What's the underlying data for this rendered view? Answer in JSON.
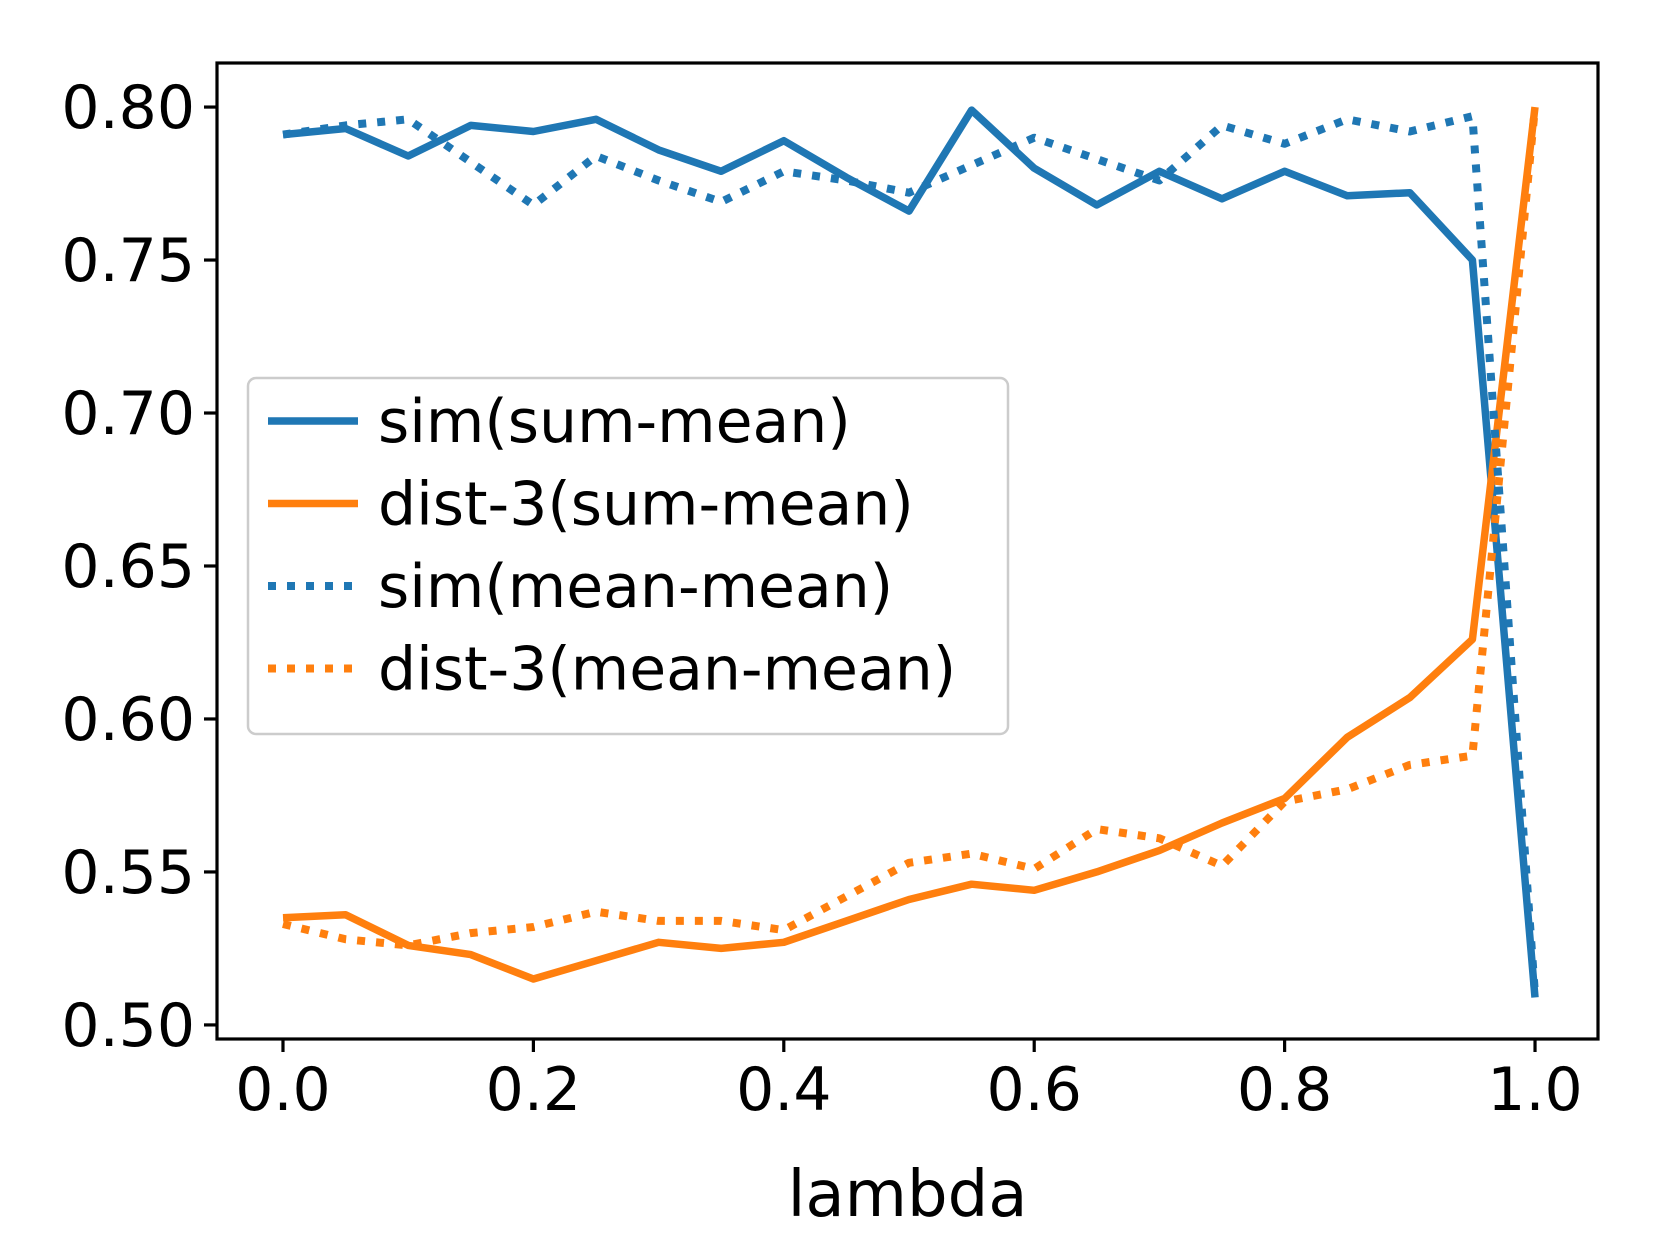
{
  "chart_data": {
    "type": "line",
    "title": "",
    "xlabel": "lambda",
    "ylabel": "",
    "x": [
      0.0,
      0.05,
      0.1,
      0.15,
      0.2,
      0.25,
      0.3,
      0.35,
      0.4,
      0.45,
      0.5,
      0.55,
      0.6,
      0.65,
      0.7,
      0.75,
      0.8,
      0.85,
      0.9,
      0.95,
      1.0
    ],
    "series": [
      {
        "name": "sim(sum-mean)",
        "color": "#1f77b4",
        "linestyle": "solid",
        "values": [
          0.791,
          0.793,
          0.784,
          0.794,
          0.792,
          0.796,
          0.786,
          0.779,
          0.789,
          0.777,
          0.766,
          0.799,
          0.78,
          0.768,
          0.779,
          0.77,
          0.779,
          0.771,
          0.772,
          0.75,
          0.509
        ]
      },
      {
        "name": "dist-3(sum-mean)",
        "color": "#ff7f0e",
        "linestyle": "solid",
        "values": [
          0.535,
          0.536,
          0.526,
          0.523,
          0.515,
          0.521,
          0.527,
          0.525,
          0.527,
          0.534,
          0.541,
          0.546,
          0.544,
          0.55,
          0.557,
          0.566,
          0.574,
          0.594,
          0.607,
          0.626,
          0.8
        ]
      },
      {
        "name": "sim(mean-mean)",
        "color": "#1f77b4",
        "linestyle": "dotted",
        "values": [
          0.791,
          0.794,
          0.796,
          0.782,
          0.768,
          0.784,
          0.776,
          0.769,
          0.779,
          0.776,
          0.772,
          0.781,
          0.79,
          0.783,
          0.776,
          0.794,
          0.788,
          0.796,
          0.792,
          0.797,
          0.51
        ]
      },
      {
        "name": "dist-3(mean-mean)",
        "color": "#ff7f0e",
        "linestyle": "dotted",
        "values": [
          0.533,
          0.528,
          0.526,
          0.53,
          0.532,
          0.537,
          0.534,
          0.534,
          0.531,
          0.542,
          0.553,
          0.556,
          0.551,
          0.564,
          0.561,
          0.552,
          0.573,
          0.577,
          0.585,
          0.588,
          0.8
        ]
      }
    ],
    "xticks": {
      "values": [
        0.0,
        0.2,
        0.4,
        0.6,
        0.8,
        1.0
      ],
      "labels": [
        "0.0",
        "0.2",
        "0.4",
        "0.6",
        "0.8",
        "1.0"
      ]
    },
    "yticks": {
      "values": [
        0.5,
        0.55,
        0.6,
        0.65,
        0.7,
        0.75,
        0.8
      ],
      "labels": [
        "0.50",
        "0.55",
        "0.60",
        "0.65",
        "0.70",
        "0.75",
        "0.80"
      ]
    },
    "xlim": [
      -0.0527,
      1.0503
    ],
    "ylim": [
      0.4954,
      0.8144
    ],
    "grid": false,
    "legend": {
      "position": "center-left",
      "entries": [
        "sim(sum-mean)",
        "dist-3(sum-mean)",
        "sim(mean-mean)",
        "dist-3(mean-mean)"
      ]
    },
    "colors": {
      "series_blue": "#1f77b4",
      "series_orange": "#ff7f0e",
      "legend_border": "#cccccc",
      "axis": "#000000"
    }
  }
}
